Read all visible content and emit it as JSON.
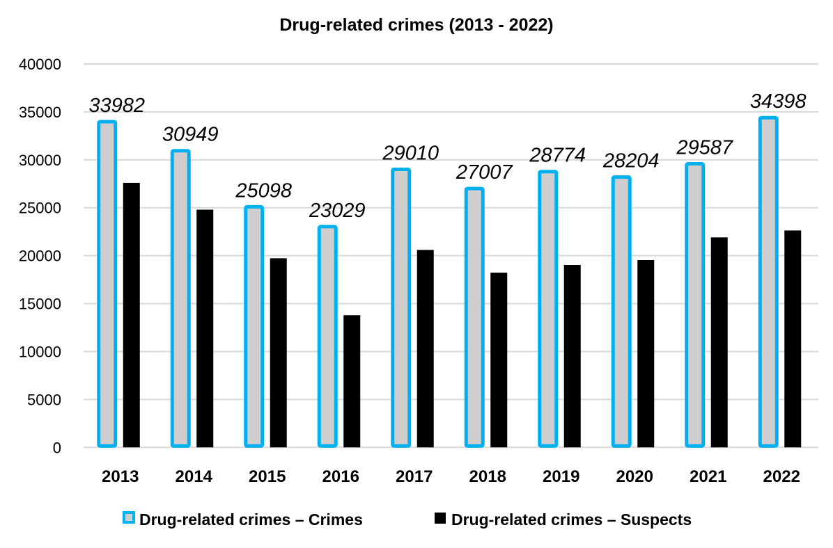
{
  "chart_data": {
    "type": "bar",
    "title": "Drug-related crimes (2013 - 2022)",
    "xlabel": "",
    "ylabel": "",
    "ylim": [
      0,
      40000
    ],
    "yticks": [
      0,
      5000,
      10000,
      15000,
      20000,
      25000,
      30000,
      35000,
      40000
    ],
    "grid": true,
    "legend_position": "bottom",
    "categories": [
      "2013",
      "2014",
      "2015",
      "2016",
      "2017",
      "2018",
      "2019",
      "2020",
      "2021",
      "2022"
    ],
    "series": [
      {
        "name": "Drug-related crimes – Crimes",
        "fill": "#d0cece",
        "stroke": "#00b0f0",
        "values": [
          33982,
          30949,
          25098,
          23029,
          29010,
          27007,
          28774,
          28204,
          29587,
          34398
        ],
        "data_labels": true
      },
      {
        "name": "Drug-related crimes – Suspects",
        "fill": "#000000",
        "values": [
          27600,
          24800,
          19730,
          13790,
          20600,
          18230,
          19030,
          19540,
          21910,
          22630
        ],
        "data_labels": false
      }
    ]
  }
}
